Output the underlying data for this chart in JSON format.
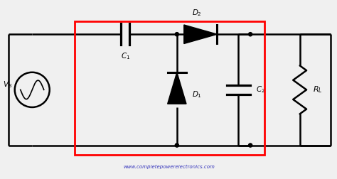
{
  "bg_color": "#f0f0f0",
  "line_color": "black",
  "website_text": "www.completepowerelectronics.com",
  "website_color": "#3333bb",
  "lw": 1.8
}
